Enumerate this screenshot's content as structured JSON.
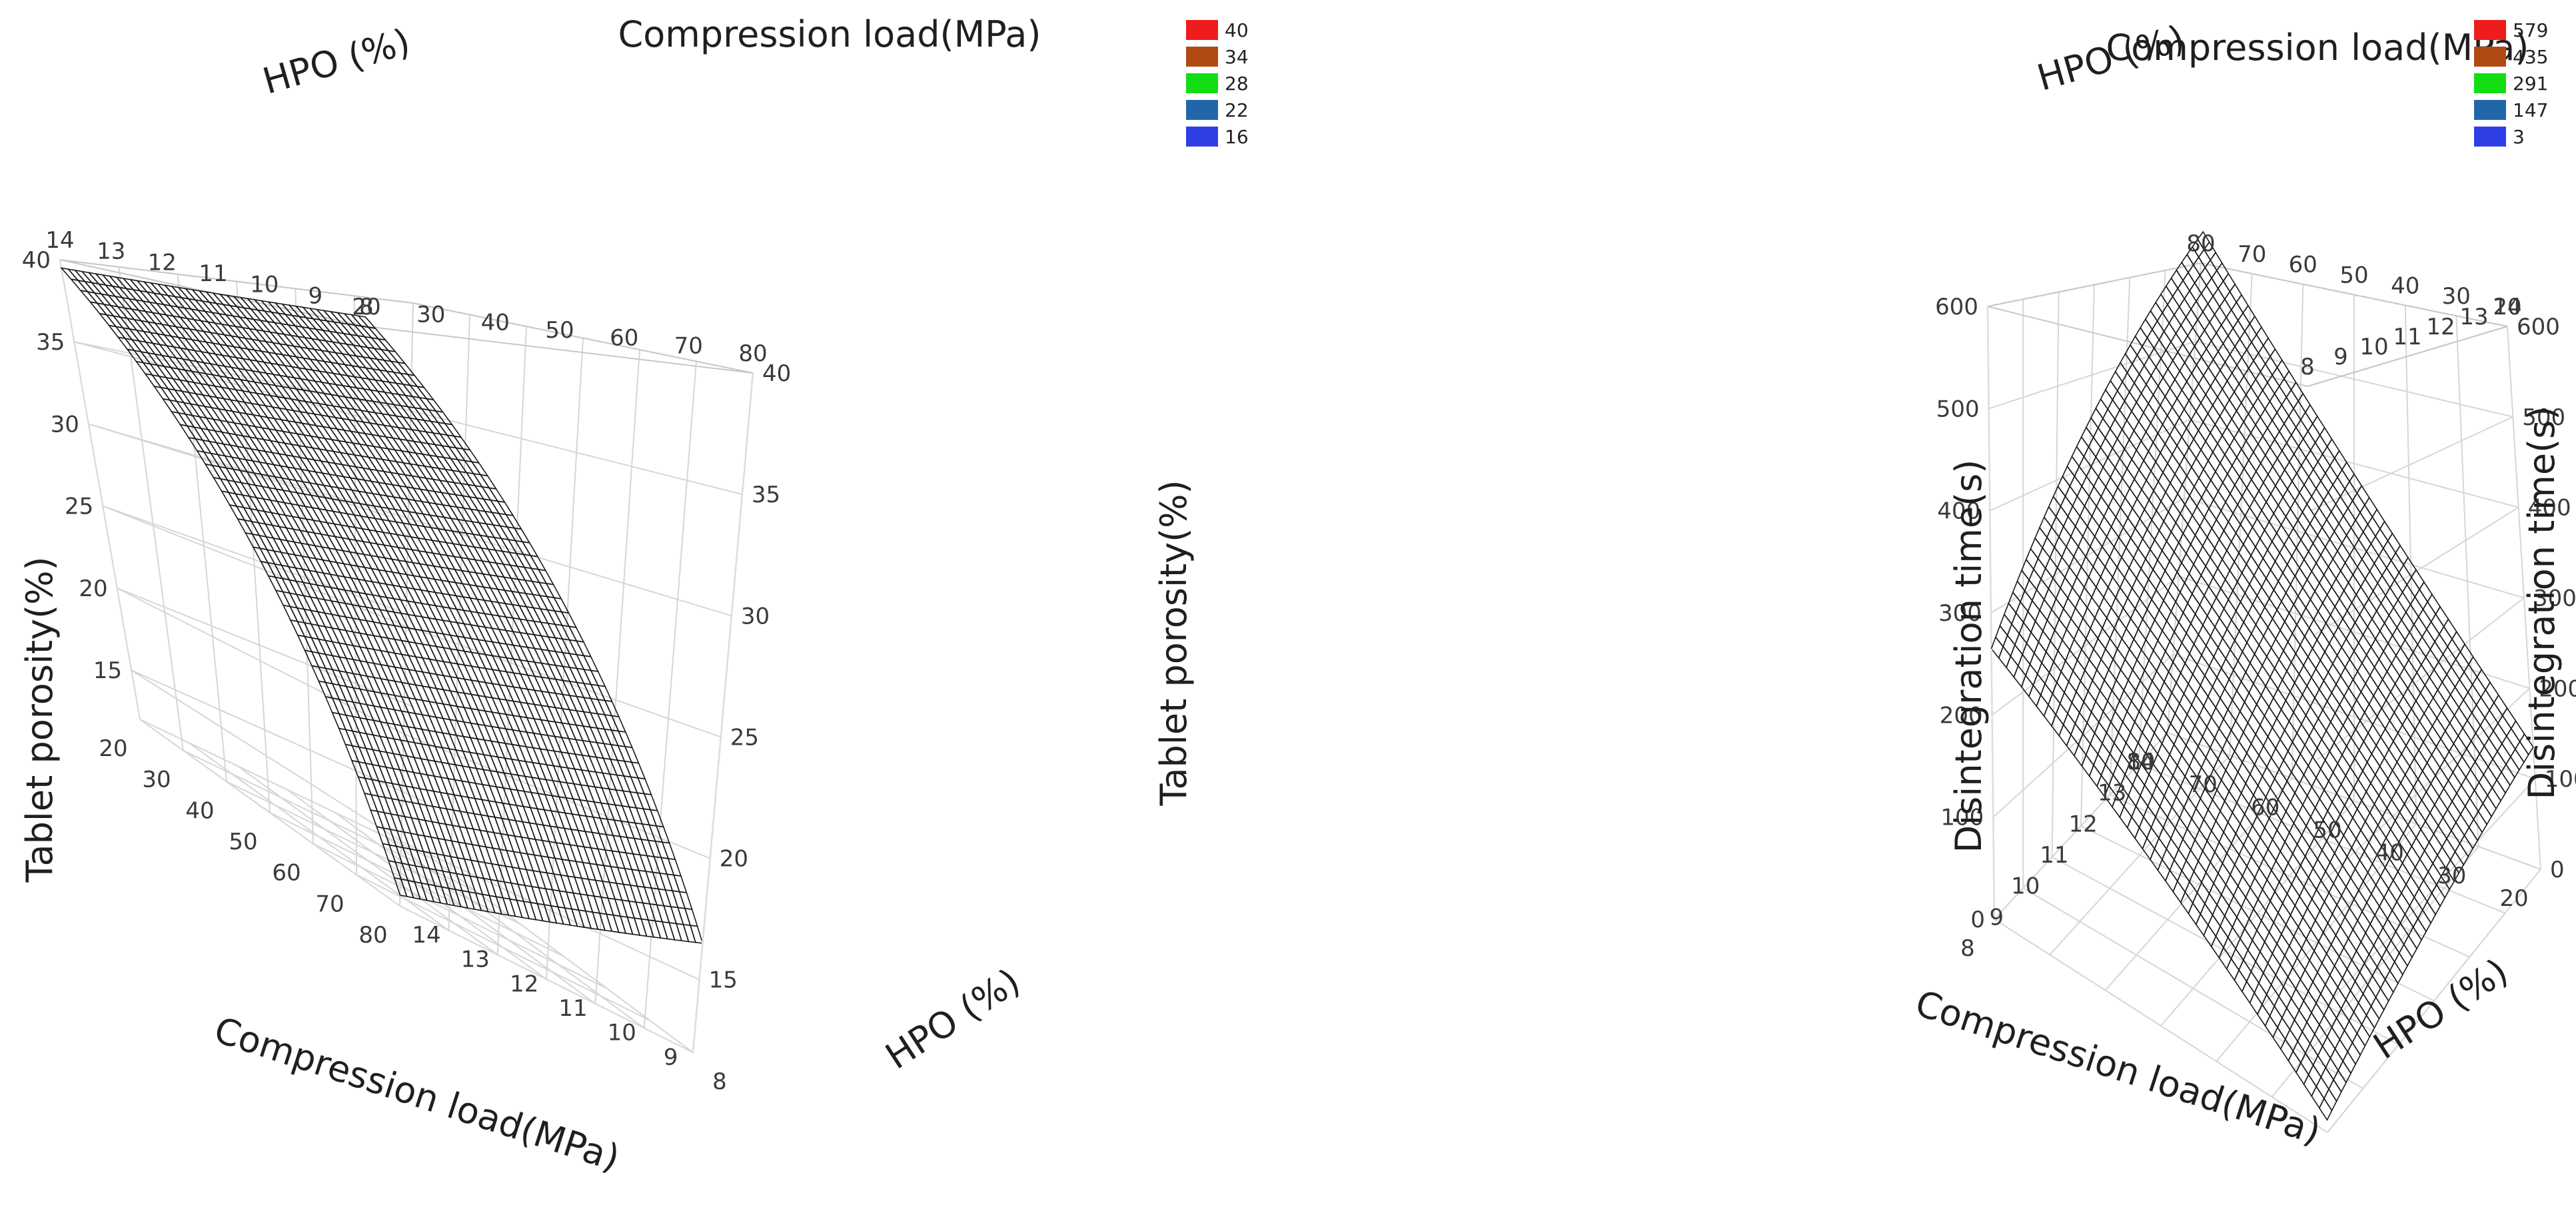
{
  "chart_data": [
    {
      "type": "surface3d",
      "x": {
        "label": "Compression load(MPa)",
        "range": [
          20,
          80
        ],
        "ticks": [
          20,
          30,
          40,
          50,
          60,
          70,
          80
        ]
      },
      "y": {
        "label": "HPO (%)",
        "range": [
          8,
          14
        ],
        "ticks": [
          8,
          9,
          10,
          11,
          12,
          13,
          14
        ]
      },
      "z": {
        "label": "Tablet porosity(%)",
        "range": [
          12,
          40
        ],
        "ticks": [
          15,
          20,
          25,
          30,
          35,
          40
        ]
      },
      "surface_corners": [
        {
          "load": 20,
          "hpo": 8,
          "value": 40.5
        },
        {
          "load": 20,
          "hpo": 14,
          "value": 39.5
        },
        {
          "load": 80,
          "hpo": 8,
          "value": 16.5
        },
        {
          "load": 80,
          "hpo": 14,
          "value": 12.5
        }
      ],
      "legend": {
        "labels": [
          "40",
          "34",
          "28",
          "22",
          "16"
        ],
        "colors": [
          "#ee1c1c",
          "#b04a12",
          "#12dd12",
          "#2266aa",
          "#2f3fe6"
        ]
      }
    },
    {
      "type": "surface3d",
      "x": {
        "label": "Compression load(MPa)",
        "range": [
          20,
          80
        ],
        "ticks": [
          20,
          30,
          40,
          50,
          60,
          70,
          80
        ]
      },
      "y": {
        "label": "HPO (%)",
        "range": [
          8,
          14
        ],
        "ticks": [
          8,
          9,
          10,
          11,
          12,
          13,
          14
        ]
      },
      "z": {
        "label": "Disintegration time(s)",
        "range": [
          0,
          600
        ],
        "ticks": [
          0,
          100,
          200,
          300,
          400,
          500,
          600
        ]
      },
      "surface_corners": [
        {
          "load": 20,
          "hpo": 8,
          "value": 10
        },
        {
          "load": 20,
          "hpo": 14,
          "value": 135
        },
        {
          "load": 80,
          "hpo": 8,
          "value": 265
        },
        {
          "load": 80,
          "hpo": 14,
          "value": 640
        }
      ],
      "legend": {
        "labels": [
          "579",
          "435",
          "291",
          "147",
          "3"
        ],
        "colors": [
          "#ee1c1c",
          "#b04a12",
          "#12dd12",
          "#2266aa",
          "#2f3fe6"
        ]
      }
    }
  ]
}
